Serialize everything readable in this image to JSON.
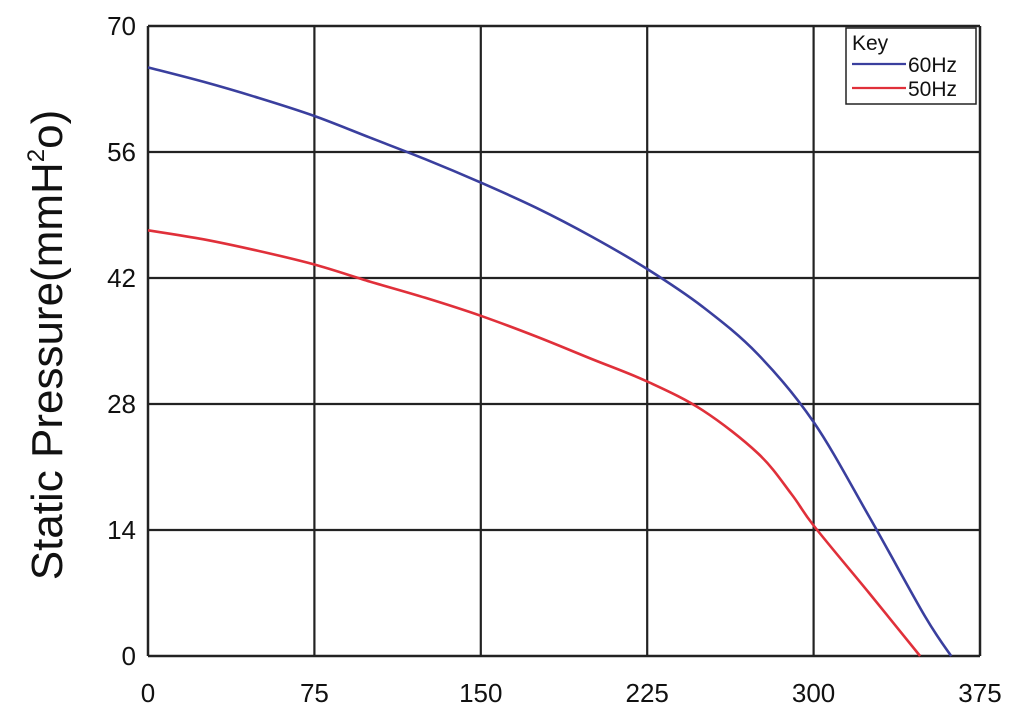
{
  "chart_data": {
    "type": "line",
    "title": "",
    "xlabel": "",
    "ylabel": {
      "main": "Static Pressure(mmH",
      "sup1": "2",
      "mid": "o",
      "close": ")"
    },
    "xlim": [
      0,
      375
    ],
    "ylim": [
      0,
      70
    ],
    "x_ticks": [
      "0",
      "75",
      "150",
      "225",
      "300",
      "375"
    ],
    "y_ticks": [
      "0",
      "14",
      "28",
      "42",
      "56",
      "70"
    ],
    "grid": true,
    "legend": {
      "title": "Key",
      "placement": "top-right"
    },
    "series": [
      {
        "name": "60Hz",
        "color": "#3a3f9e",
        "points": [
          [
            0,
            65.4
          ],
          [
            25,
            63.8
          ],
          [
            50,
            62.0
          ],
          [
            75,
            60.0
          ],
          [
            100,
            57.6
          ],
          [
            125,
            55.2
          ],
          [
            150,
            52.6
          ],
          [
            175,
            49.8
          ],
          [
            200,
            46.6
          ],
          [
            225,
            43.0
          ],
          [
            250,
            38.8
          ],
          [
            275,
            33.5
          ],
          [
            300,
            26.0
          ],
          [
            325,
            15.5
          ],
          [
            350,
            4.5
          ],
          [
            362,
            0
          ]
        ]
      },
      {
        "name": "50Hz",
        "color": "#e0303a",
        "points": [
          [
            0,
            47.3
          ],
          [
            25,
            46.3
          ],
          [
            50,
            45.0
          ],
          [
            75,
            43.5
          ],
          [
            100,
            41.6
          ],
          [
            125,
            39.8
          ],
          [
            150,
            37.8
          ],
          [
            175,
            35.5
          ],
          [
            200,
            33.0
          ],
          [
            225,
            30.5
          ],
          [
            250,
            27.3
          ],
          [
            275,
            22.5
          ],
          [
            290,
            18.0
          ],
          [
            300,
            14.5
          ],
          [
            325,
            7.0
          ],
          [
            348,
            0
          ]
        ]
      }
    ]
  }
}
